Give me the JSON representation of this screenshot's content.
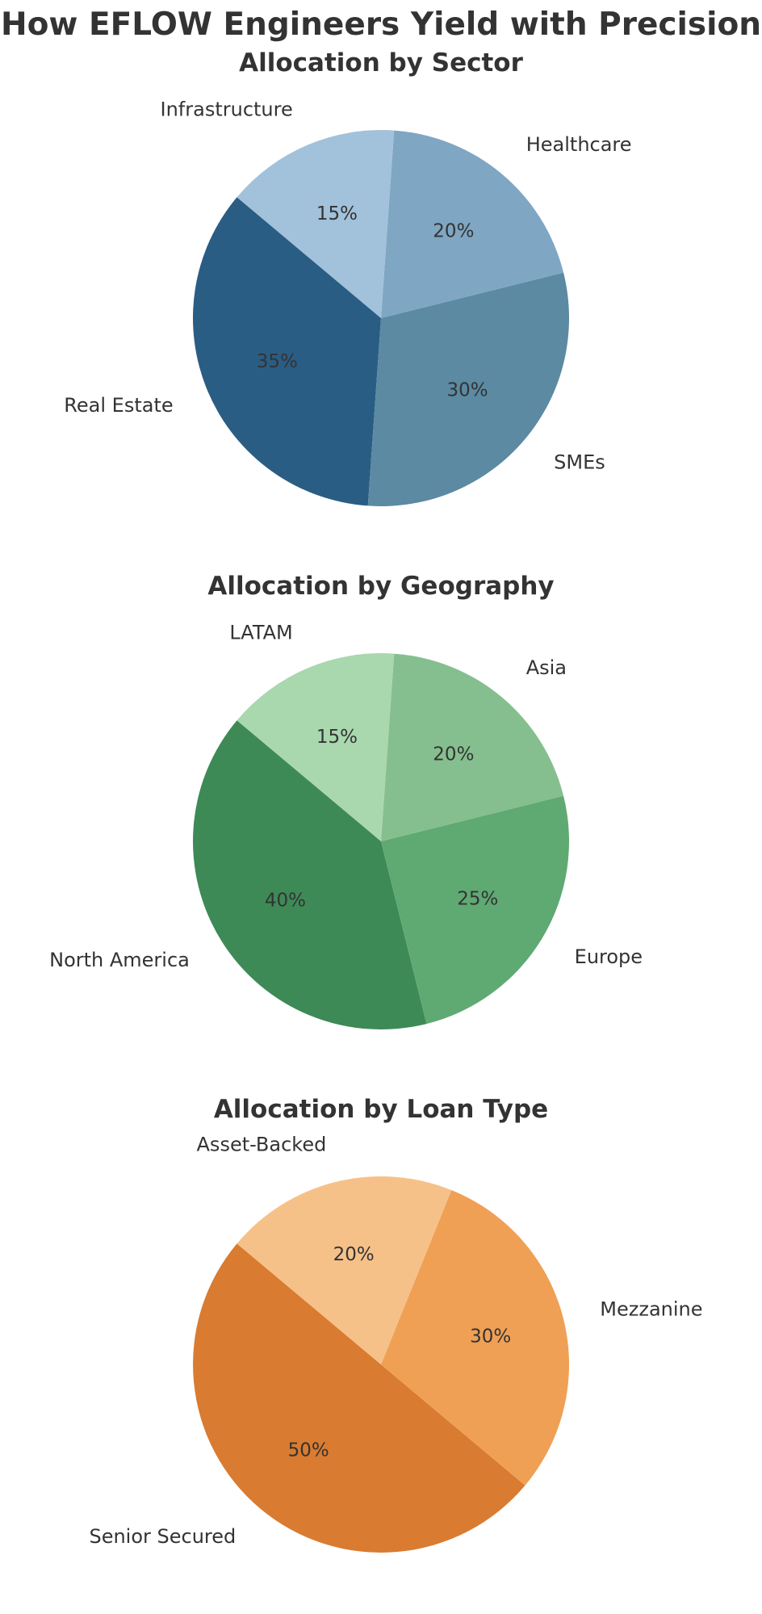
{
  "figure": {
    "title": "How EFLOW Engineers Yield with Precision"
  },
  "chart_data": [
    {
      "type": "pie",
      "title": "Allocation by Sector",
      "categories": [
        "Real Estate",
        "SMEs",
        "Healthcare",
        "Infrastructure"
      ],
      "values": [
        35,
        30,
        20,
        15
      ],
      "labels_pct": [
        "35%",
        "30%",
        "20%",
        "15%"
      ],
      "colors": [
        "#2a5d84",
        "#5b8aa2",
        "#7fa6c3",
        "#a2c1da"
      ]
    },
    {
      "type": "pie",
      "title": "Allocation by Geography",
      "categories": [
        "North America",
        "Europe",
        "Asia",
        "LATAM"
      ],
      "values": [
        40,
        25,
        20,
        15
      ],
      "labels_pct": [
        "40%",
        "25%",
        "20%",
        "15%"
      ],
      "colors": [
        "#3d8a56",
        "#5fa973",
        "#85bf8f",
        "#a9d7ae"
      ]
    },
    {
      "type": "pie",
      "title": "Allocation by Loan Type",
      "categories": [
        "Senior Secured",
        "Mezzanine",
        "Asset-Backed"
      ],
      "values": [
        50,
        30,
        20
      ],
      "labels_pct": [
        "50%",
        "30%",
        "20%"
      ],
      "colors": [
        "#d97b30",
        "#efa055",
        "#f6c189"
      ]
    }
  ]
}
